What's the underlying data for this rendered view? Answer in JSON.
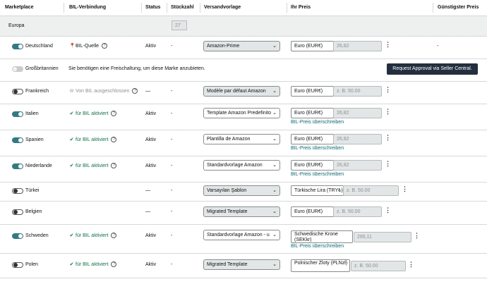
{
  "headers": {
    "marketplace": "Marketplace",
    "bil": "BIL-Verbindung",
    "status": "Status",
    "qty": "Stückzahl",
    "template": "Versandvorlage",
    "price": "Ihr Preis",
    "best": "Günstigster Preis"
  },
  "region": {
    "label": "Europa",
    "qty": "27"
  },
  "rows": [
    {
      "marketplace": "Deutschland",
      "toggle": "on",
      "bil": "BIL-Quelle",
      "status": "Aktiv",
      "qty": "-",
      "template": "Amazon-Prime",
      "currency": "Euro (EUR€)",
      "price": "26,82",
      "best": "-"
    },
    {
      "marketplace": "Großbritannien",
      "toggle": "disabled",
      "message": "Sie benötigen eine Freischaltung, um diese Marke anzubieten.",
      "button": "Request Approval via Seller Central."
    },
    {
      "marketplace": "Frankreich",
      "toggle": "off",
      "bil": "Von BIL ausgeschlossen",
      "status": "—",
      "qty": "-",
      "template": "Modèle par défaut Amazon",
      "currency": "Euro (EUR€)",
      "price_placeholder": "z. B. 50.00"
    },
    {
      "marketplace": "Italien",
      "toggle": "on",
      "bil": "für BIL aktiviert",
      "status": "Aktiv",
      "qty": "-",
      "template": "Template Amazon Predefinito",
      "currency": "Euro (EUR€)",
      "price": "26,82",
      "link": "BIL-Preis überschreiben"
    },
    {
      "marketplace": "Spanien",
      "toggle": "on",
      "bil": "für BIL aktiviert",
      "status": "Aktiv",
      "qty": "-",
      "template": "Plantilla de Amazon",
      "currency": "Euro (EUR€)",
      "price": "26,82",
      "link": "BIL-Preis überschreiben"
    },
    {
      "marketplace": "Niederlande",
      "toggle": "on",
      "bil": "für BIL aktiviert",
      "status": "Aktiv",
      "qty": "-",
      "template": "Standardvorlage Amazon",
      "currency": "Euro (EUR€)",
      "price": "26,82",
      "link": "BIL-Preis überschreiben"
    },
    {
      "marketplace": "Türkei",
      "toggle": "off",
      "status": "—",
      "qty": "-",
      "template": "Varsayılan Şablon",
      "currency": "Türkische Lira (TRY₺)",
      "price_placeholder": "z. B. 50.00"
    },
    {
      "marketplace": "Belgien",
      "toggle": "off",
      "status": "—",
      "qty": "-",
      "template": "Migrated Template",
      "currency": "Euro (EUR€)",
      "price_placeholder": "z. B. 50.00"
    },
    {
      "marketplace": "Schweden",
      "toggle": "on",
      "bil": "für BIL aktiviert",
      "status": "Aktiv",
      "qty": "-",
      "template": "Standardvorlage Amazon - u",
      "currency": "Schwedische Krone (SEKkr)",
      "price": "295,11",
      "link": "BIL-Preis überschreiben"
    },
    {
      "marketplace": "Polen",
      "toggle": "off",
      "bil": "für BIL aktiviert",
      "status": "Aktiv",
      "qty": "-",
      "template": "Migrated Template",
      "currency": "Polnischer Zloty (PLNzł)",
      "price_placeholder": "z. B. 50.00"
    }
  ],
  "icons": {
    "location": "location-pin-icon",
    "help": "help-circle-icon",
    "check": "check-circle-icon",
    "excluded": "minus-circle-icon",
    "menu": "kebab-menu-icon"
  },
  "colors": {
    "toggle_on": "#2f7b87",
    "green": "#067d3e",
    "link": "#007185",
    "button": "#232f3e"
  }
}
